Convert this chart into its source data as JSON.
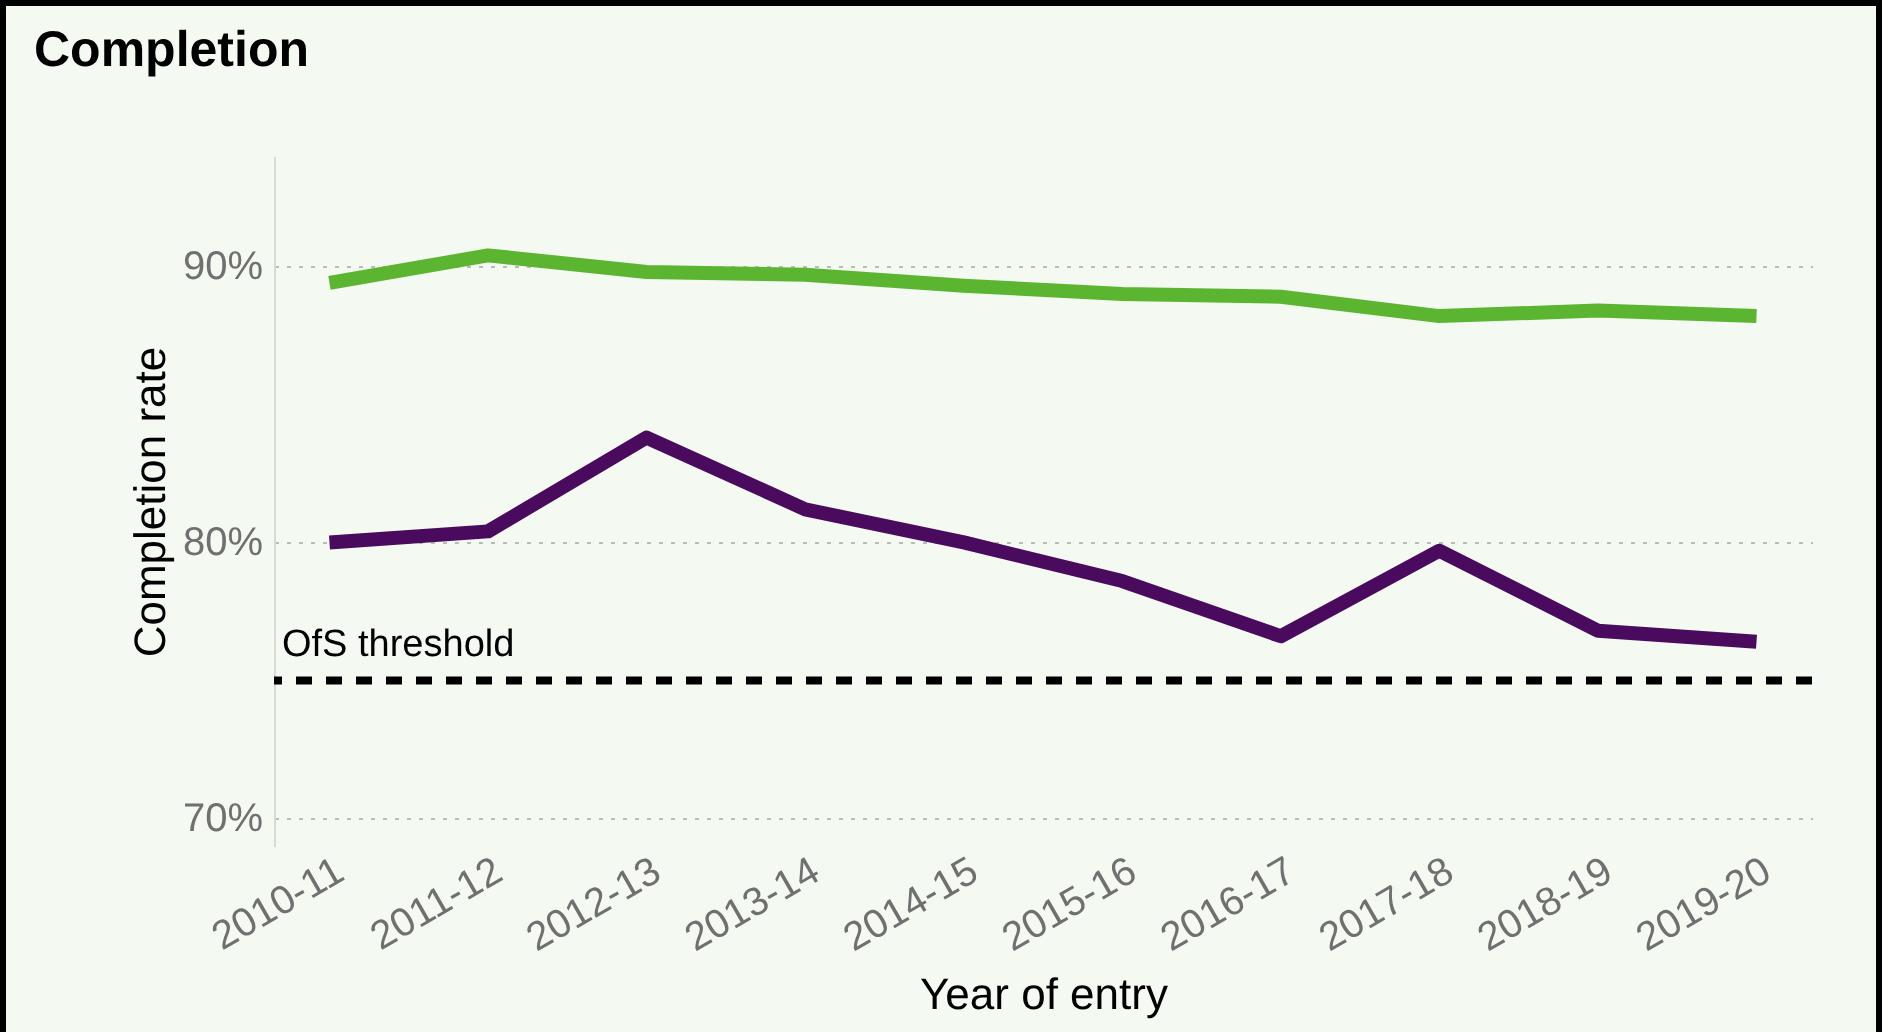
{
  "chart_data": {
    "type": "line",
    "title": "Completion",
    "xlabel": "Year of entry",
    "ylabel": "Completion rate",
    "categories": [
      "2010-11",
      "2011-12",
      "2012-13",
      "2013-14",
      "2014-15",
      "2015-16",
      "2016-17",
      "2017-18",
      "2018-19",
      "2019-20"
    ],
    "series": [
      {
        "color": "#5bb531",
        "values": [
          89.4,
          90.4,
          89.8,
          89.7,
          89.3,
          89.0,
          88.9,
          88.2,
          88.4,
          88.2
        ]
      },
      {
        "color": "#4a0a5e",
        "values": [
          80.0,
          80.4,
          83.8,
          81.2,
          80.0,
          78.6,
          76.6,
          79.7,
          76.8,
          76.4
        ]
      }
    ],
    "ylim": [
      69,
      94
    ],
    "yticks": [
      {
        "value": 70,
        "label": "70%"
      },
      {
        "value": 80,
        "label": "80%"
      },
      {
        "value": 90,
        "label": "90%"
      }
    ],
    "grid": "y",
    "legend": false,
    "line_style": "solid",
    "marker": "none",
    "ref_lines": [
      {
        "axis": "y",
        "value": 75,
        "label": "OfS threshold",
        "color": "#000000",
        "line_style": "dashed"
      }
    ]
  }
}
